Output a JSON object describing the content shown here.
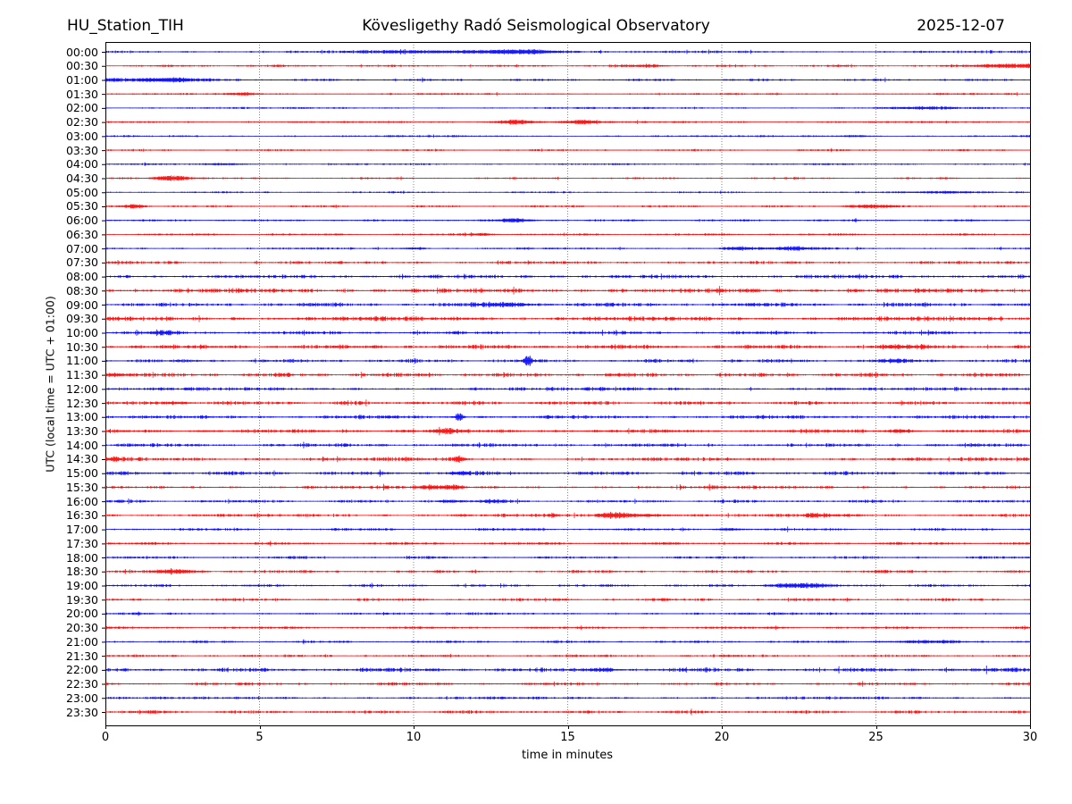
{
  "header": {
    "station": "HU_Station_TIH",
    "observatory": "Kövesligethy Radó Seismological Observatory",
    "date": "2025-12-07"
  },
  "chart_data": {
    "type": "line",
    "subtype": "helicorder-seismogram",
    "title": "Kövesligethy Radó Seismological Observatory",
    "xlabel": "time in minutes",
    "ylabel": "UTC (local time = UTC + 01:00)",
    "x_range": [
      0,
      30
    ],
    "x_ticks": [
      0,
      5,
      10,
      15,
      20,
      25,
      30
    ],
    "grid": {
      "vertical_lines_minutes": [
        5,
        10,
        15,
        20,
        25
      ],
      "style": "dotted",
      "color": "#666666"
    },
    "legend": "none",
    "colors": {
      "hour_trace": "#0000ff",
      "half_hour_trace": "#ff0000",
      "axis": "#000000"
    },
    "row_spacing_minutes": 30,
    "traces": [
      {
        "label": "00:00",
        "color": "#0000ff",
        "noise": 1.0,
        "events": [
          {
            "t": 10.0,
            "a": 1.0,
            "w": 1.5
          },
          {
            "t": 12.7,
            "a": 1.7,
            "w": 1.0
          },
          {
            "t": 13.9,
            "a": 1.6,
            "w": 0.7
          }
        ]
      },
      {
        "label": "00:30",
        "color": "#ff0000",
        "noise": 0.9,
        "events": [
          {
            "t": 17.5,
            "a": 1.2,
            "w": 0.5
          },
          {
            "t": 29.4,
            "a": 2.2,
            "w": 0.8
          }
        ]
      },
      {
        "label": "01:00",
        "color": "#0000ff",
        "noise": 0.95,
        "events": [
          {
            "t": 1.2,
            "a": 1.5,
            "w": 1.2
          },
          {
            "t": 2.2,
            "a": 1.2,
            "w": 0.6
          }
        ]
      },
      {
        "label": "01:30",
        "color": "#ff0000",
        "noise": 0.75,
        "events": [
          {
            "t": 4.5,
            "a": 1.6,
            "w": 0.3
          }
        ]
      },
      {
        "label": "02:00",
        "color": "#0000ff",
        "noise": 0.75,
        "events": [
          {
            "t": 26.5,
            "a": 1.0,
            "w": 1.0
          }
        ]
      },
      {
        "label": "02:30",
        "color": "#ff0000",
        "noise": 0.8,
        "events": [
          {
            "t": 13.3,
            "a": 2.8,
            "w": 0.4
          },
          {
            "t": 15.4,
            "a": 1.8,
            "w": 0.5
          }
        ]
      },
      {
        "label": "03:00",
        "color": "#0000ff",
        "noise": 0.75,
        "events": [
          {
            "t": 24.3,
            "a": 1.0,
            "w": 0.4
          }
        ]
      },
      {
        "label": "03:30",
        "color": "#ff0000",
        "noise": 0.78,
        "events": []
      },
      {
        "label": "04:00",
        "color": "#0000ff",
        "noise": 0.75,
        "events": [
          {
            "t": 4.0,
            "a": 0.9,
            "w": 0.5
          }
        ]
      },
      {
        "label": "04:30",
        "color": "#ff0000",
        "noise": 0.8,
        "events": [
          {
            "t": 2.2,
            "a": 2.8,
            "w": 0.45
          }
        ]
      },
      {
        "label": "05:00",
        "color": "#0000ff",
        "noise": 0.75,
        "events": [
          {
            "t": 27.3,
            "a": 1.2,
            "w": 0.9
          }
        ]
      },
      {
        "label": "05:30",
        "color": "#ff0000",
        "noise": 0.85,
        "events": [
          {
            "t": 0.9,
            "a": 2.0,
            "w": 0.3
          },
          {
            "t": 24.8,
            "a": 1.5,
            "w": 0.6
          }
        ]
      },
      {
        "label": "06:00",
        "color": "#0000ff",
        "noise": 0.85,
        "events": [
          {
            "t": 13.3,
            "a": 1.8,
            "w": 0.4
          }
        ]
      },
      {
        "label": "06:30",
        "color": "#ff0000",
        "noise": 0.85,
        "events": [
          {
            "t": 12.2,
            "a": 1.4,
            "w": 0.3
          }
        ]
      },
      {
        "label": "07:00",
        "color": "#0000ff",
        "noise": 0.85,
        "events": [
          {
            "t": 10.0,
            "a": 1.1,
            "w": 0.3
          },
          {
            "t": 20.6,
            "a": 1.5,
            "w": 0.4
          },
          {
            "t": 22.3,
            "a": 1.6,
            "w": 0.6
          }
        ]
      },
      {
        "label": "07:30",
        "color": "#ff0000",
        "noise": 1.15,
        "events": []
      },
      {
        "label": "08:00",
        "color": "#0000ff",
        "noise": 1.45,
        "events": []
      },
      {
        "label": "08:30",
        "color": "#ff0000",
        "noise": 1.75,
        "events": []
      },
      {
        "label": "09:00",
        "color": "#0000ff",
        "noise": 1.55,
        "events": [
          {
            "t": 13.1,
            "a": 1.6,
            "w": 0.6
          }
        ]
      },
      {
        "label": "09:30",
        "color": "#ff0000",
        "noise": 1.75,
        "events": []
      },
      {
        "label": "10:00",
        "color": "#0000ff",
        "noise": 1.35,
        "events": [
          {
            "t": 1.8,
            "a": 1.3,
            "w": 0.4
          }
        ]
      },
      {
        "label": "10:30",
        "color": "#ff0000",
        "noise": 1.65,
        "events": [
          {
            "t": 25.7,
            "a": 1.2,
            "w": 0.4
          }
        ]
      },
      {
        "label": "11:00",
        "color": "#0000ff",
        "noise": 1.35,
        "events": [
          {
            "t": 13.7,
            "a": 5.0,
            "w": 0.1
          },
          {
            "t": 25.6,
            "a": 1.2,
            "w": 0.4
          }
        ]
      },
      {
        "label": "11:30",
        "color": "#ff0000",
        "noise": 1.55,
        "events": [
          {
            "t": 0.3,
            "a": 1.6,
            "w": 0.3
          }
        ]
      },
      {
        "label": "12:00",
        "color": "#0000ff",
        "noise": 1.35,
        "events": []
      },
      {
        "label": "12:30",
        "color": "#ff0000",
        "noise": 1.45,
        "events": [
          {
            "t": 2.4,
            "a": 1.2,
            "w": 0.3
          }
        ]
      },
      {
        "label": "13:00",
        "color": "#0000ff",
        "noise": 1.35,
        "events": [
          {
            "t": 11.5,
            "a": 4.5,
            "w": 0.1
          }
        ]
      },
      {
        "label": "13:30",
        "color": "#ff0000",
        "noise": 1.45,
        "events": [
          {
            "t": 11.0,
            "a": 1.9,
            "w": 0.3
          },
          {
            "t": 25.8,
            "a": 1.5,
            "w": 0.3
          }
        ]
      },
      {
        "label": "14:00",
        "color": "#0000ff",
        "noise": 1.35,
        "events": []
      },
      {
        "label": "14:30",
        "color": "#ff0000",
        "noise": 1.45,
        "events": [
          {
            "t": 0.2,
            "a": 1.7,
            "w": 0.2
          },
          {
            "t": 11.5,
            "a": 2.6,
            "w": 0.12
          }
        ]
      },
      {
        "label": "15:00",
        "color": "#0000ff",
        "noise": 1.45,
        "events": [
          {
            "t": 11.5,
            "a": 1.6,
            "w": 0.25
          }
        ]
      },
      {
        "label": "15:30",
        "color": "#ff0000",
        "noise": 1.25,
        "events": [
          {
            "t": 10.7,
            "a": 1.5,
            "w": 0.3
          },
          {
            "t": 11.3,
            "a": 1.3,
            "w": 0.25
          }
        ]
      },
      {
        "label": "16:00",
        "color": "#0000ff",
        "noise": 1.15,
        "events": [
          {
            "t": 11.2,
            "a": 1.4,
            "w": 0.3
          },
          {
            "t": 12.5,
            "a": 1.1,
            "w": 0.3
          }
        ]
      },
      {
        "label": "16:30",
        "color": "#ff0000",
        "noise": 1.25,
        "events": [
          {
            "t": 14.5,
            "a": 1.5,
            "w": 0.1
          },
          {
            "t": 16.4,
            "a": 3.4,
            "w": 0.4,
            "k": "burst",
            "decay": 1.1
          },
          {
            "t": 23.2,
            "a": 1.1,
            "w": 0.5
          }
        ]
      },
      {
        "label": "17:00",
        "color": "#0000ff",
        "noise": 1.05,
        "events": [
          {
            "t": 20.2,
            "a": 1.1,
            "w": 0.3
          }
        ]
      },
      {
        "label": "17:30",
        "color": "#ff0000",
        "noise": 1.05,
        "events": []
      },
      {
        "label": "18:00",
        "color": "#0000ff",
        "noise": 1.0,
        "events": []
      },
      {
        "label": "18:30",
        "color": "#ff0000",
        "noise": 1.1,
        "events": [
          {
            "t": 2.3,
            "a": 2.0,
            "w": 0.5
          }
        ]
      },
      {
        "label": "19:00",
        "color": "#0000ff",
        "noise": 1.1,
        "events": [
          {
            "t": 22.4,
            "a": 2.6,
            "w": 0.6
          }
        ]
      },
      {
        "label": "19:30",
        "color": "#ff0000",
        "noise": 1.1,
        "events": []
      },
      {
        "label": "20:00",
        "color": "#0000ff",
        "noise": 1.0,
        "events": []
      },
      {
        "label": "20:30",
        "color": "#ff0000",
        "noise": 1.0,
        "events": []
      },
      {
        "label": "21:00",
        "color": "#0000ff",
        "noise": 1.0,
        "events": [
          {
            "t": 26.6,
            "a": 1.0,
            "w": 1.0
          }
        ]
      },
      {
        "label": "21:30",
        "color": "#ff0000",
        "noise": 0.95,
        "events": []
      },
      {
        "label": "22:00",
        "color": "#0000ff",
        "noise": 1.6,
        "events": [
          {
            "t": 16.1,
            "a": 1.5,
            "w": 0.4
          }
        ]
      },
      {
        "label": "22:30",
        "color": "#ff0000",
        "noise": 1.15,
        "events": []
      },
      {
        "label": "23:00",
        "color": "#0000ff",
        "noise": 1.1,
        "events": []
      },
      {
        "label": "23:30",
        "color": "#ff0000",
        "noise": 1.25,
        "events": []
      }
    ]
  }
}
